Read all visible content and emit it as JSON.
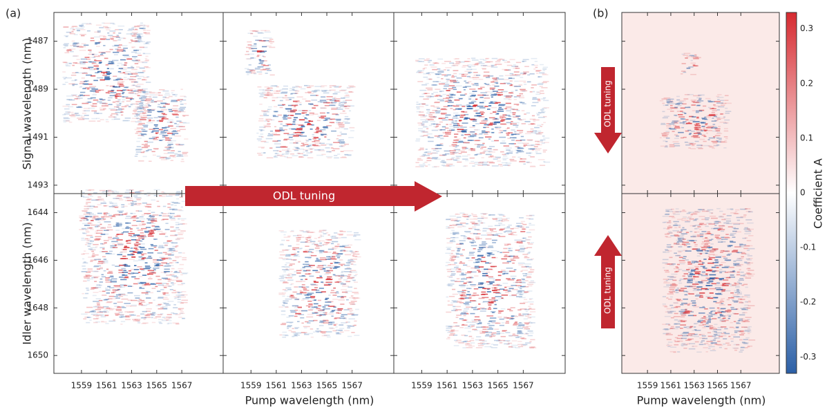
{
  "chart_data": {
    "type": "heatmap",
    "panel_labels": [
      "(a)",
      "(b)"
    ],
    "xlabels": [
      "Pump wavelength (nm)",
      "Pump wavelength (nm)"
    ],
    "ylabels": [
      "Signal wavelength (nm)",
      "Idler wavelength (nm)"
    ],
    "xlim": [
      1556.8,
      1570.3
    ],
    "xticks": [
      1559,
      1561,
      1563,
      1565,
      1567
    ],
    "signal_ylim": [
      1485.8,
      1493.35
    ],
    "signal_yticks": [
      1487,
      1489,
      1491,
      1493
    ],
    "idler_ylim": [
      1643.2,
      1650.75
    ],
    "idler_yticks": [
      1644,
      1646,
      1648,
      1650
    ],
    "colorbar": {
      "label": "Coefficient A",
      "lim": [
        -0.33,
        0.33
      ],
      "ticks": [
        0.3,
        0.2,
        0.1,
        0,
        -0.1,
        -0.2,
        -0.3
      ],
      "colors": [
        "#2b5fa6",
        "#ffffff",
        "#d62a30"
      ]
    },
    "annotations": [
      "ODL tuning",
      "ODL tuning",
      "ODL tuning"
    ]
  }
}
